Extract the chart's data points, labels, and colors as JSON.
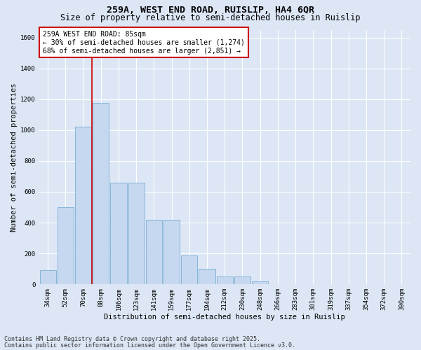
{
  "title_line1": "259A, WEST END ROAD, RUISLIP, HA4 6QR",
  "title_line2": "Size of property relative to semi-detached houses in Ruislip",
  "xlabel": "Distribution of semi-detached houses by size in Ruislip",
  "ylabel": "Number of semi-detached properties",
  "categories": [
    "34sqm",
    "52sqm",
    "70sqm",
    "88sqm",
    "106sqm",
    "123sqm",
    "141sqm",
    "159sqm",
    "177sqm",
    "194sqm",
    "212sqm",
    "230sqm",
    "248sqm",
    "266sqm",
    "283sqm",
    "301sqm",
    "319sqm",
    "337sqm",
    "354sqm",
    "372sqm",
    "390sqm"
  ],
  "values": [
    90,
    500,
    1020,
    1175,
    660,
    660,
    420,
    420,
    185,
    100,
    50,
    50,
    20,
    0,
    0,
    0,
    0,
    0,
    0,
    0,
    0
  ],
  "bar_color": "#c5d8ef",
  "bar_edge_color": "#7aadd4",
  "highlight_line_color": "#cc0000",
  "annotation_line1": "259A WEST END ROAD: 85sqm",
  "annotation_line2": "← 30% of semi-detached houses are smaller (1,274)",
  "annotation_line3": "68% of semi-detached houses are larger (2,851) →",
  "annotation_box_facecolor": "#ffffff",
  "annotation_box_edgecolor": "#cc0000",
  "ylim": [
    0,
    1650
  ],
  "yticks": [
    0,
    200,
    400,
    600,
    800,
    1000,
    1200,
    1400,
    1600
  ],
  "bg_color": "#dce6f5",
  "footer_line1": "Contains HM Land Registry data © Crown copyright and database right 2025.",
  "footer_line2": "Contains public sector information licensed under the Open Government Licence v3.0.",
  "title_fontsize": 9.5,
  "subtitle_fontsize": 8.5,
  "axis_label_fontsize": 7.5,
  "tick_fontsize": 6.5,
  "annotation_fontsize": 7,
  "footer_fontsize": 6
}
